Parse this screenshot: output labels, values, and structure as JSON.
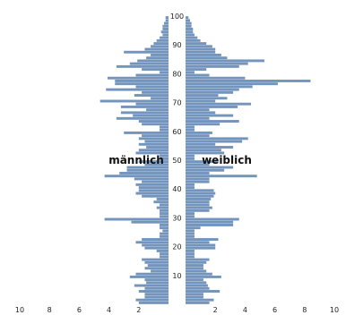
{
  "chart_data": {
    "type": "bar",
    "orientation": "horizontal",
    "layout": "population-pyramid",
    "title": "",
    "labels": {
      "left": "männlich",
      "right": "weiblich"
    },
    "y_axis": {
      "ticks": [
        "10",
        "20",
        "30",
        "40",
        "50",
        "60",
        "70",
        "80",
        "90",
        "100"
      ],
      "range": [
        0,
        100
      ]
    },
    "x_axis": {
      "range": [
        0,
        10
      ],
      "left_ticks": [
        "10",
        "8",
        "6",
        "4",
        "2"
      ],
      "right_ticks": [
        "2",
        "4",
        "6",
        "8",
        "10"
      ]
    },
    "bar_color": "#7394bd",
    "grid": false,
    "series": [
      {
        "name": "männlich",
        "values": [
          2.0,
          2.2,
          1.6,
          1.6,
          2.0,
          1.6,
          2.3,
          1.5,
          1.6,
          2.6,
          2.2,
          1.2,
          1.6,
          1.4,
          1.6,
          1.8,
          0.6,
          0.6,
          0.8,
          1.6,
          1.8,
          2.2,
          1.8,
          0.6,
          0.6,
          0.4,
          0.6,
          0.6,
          2.5,
          4.3,
          0.6,
          0.6,
          0.6,
          0.8,
          0.6,
          1.0,
          0.8,
          1.8,
          2.2,
          2.0,
          2.0,
          2.2,
          1.8,
          2.3,
          4.3,
          3.3,
          2.8,
          2.8,
          1.6,
          2.0,
          0.6,
          0.6,
          2.2,
          2.0,
          1.5,
          2.0,
          1.6,
          2.0,
          1.8,
          3.0,
          0.6,
          0.6,
          1.8,
          2.0,
          3.5,
          2.4,
          3.2,
          1.5,
          3.2,
          2.2,
          4.6,
          1.2,
          2.3,
          1.8,
          4.2,
          2.2,
          3.6,
          3.6,
          4.1,
          2.2,
          0.6,
          1.8,
          3.5,
          2.6,
          2.1,
          1.5,
          1.2,
          3.0,
          1.6,
          1.2,
          1.0,
          0.8,
          0.6,
          0.4,
          0.5,
          0.4,
          0.4,
          0.3,
          0.2,
          0.2
        ]
      },
      {
        "name": "weiblich",
        "values": [
          1.6,
          1.9,
          1.2,
          1.2,
          2.3,
          1.6,
          1.5,
          1.4,
          1.2,
          2.4,
          1.8,
          1.4,
          1.2,
          1.2,
          1.4,
          1.6,
          0.6,
          0.6,
          0.6,
          2.0,
          2.0,
          1.6,
          2.2,
          0.6,
          0.6,
          0.6,
          1.0,
          3.2,
          3.2,
          3.6,
          0.6,
          0.6,
          1.6,
          1.8,
          1.6,
          1.6,
          1.7,
          1.9,
          2.0,
          1.9,
          0.6,
          0.6,
          1.6,
          1.6,
          4.8,
          1.6,
          2.6,
          3.2,
          1.6,
          2.2,
          0.6,
          0.6,
          2.6,
          2.4,
          3.2,
          2.0,
          3.8,
          4.2,
          1.6,
          1.8,
          0.6,
          0.6,
          2.3,
          3.6,
          1.6,
          3.2,
          2.0,
          1.6,
          3.5,
          4.4,
          2.0,
          2.8,
          2.2,
          3.2,
          3.6,
          4.5,
          6.2,
          8.4,
          4.0,
          1.6,
          0.6,
          1.4,
          3.6,
          4.2,
          5.3,
          2.8,
          2.4,
          2.0,
          2.0,
          1.8,
          1.4,
          1.0,
          0.8,
          0.6,
          0.5,
          0.5,
          0.4,
          0.4,
          0.3,
          0.2
        ]
      }
    ]
  }
}
